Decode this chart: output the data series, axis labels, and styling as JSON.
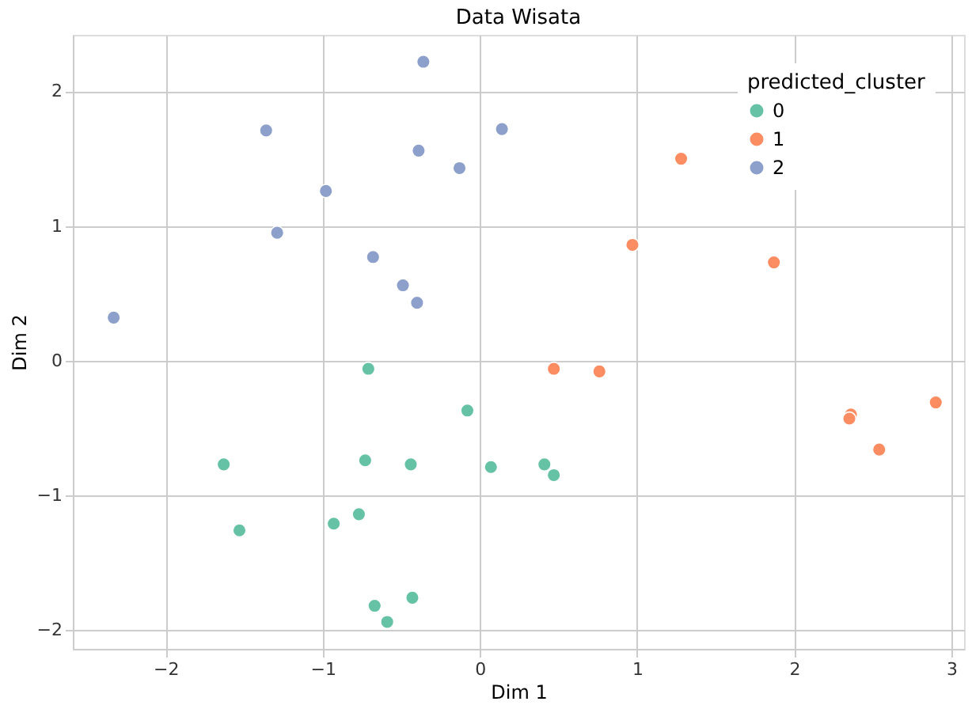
{
  "chart_data": {
    "type": "scatter",
    "title": "Data Wisata",
    "xlabel": "Dim 1",
    "ylabel": "Dim 2",
    "legend_title": "predicted_cluster",
    "xlim": [
      -2.59,
      3.08
    ],
    "ylim": [
      -2.14,
      2.42
    ],
    "xticks": [
      -2,
      -1,
      0,
      1,
      2,
      3
    ],
    "yticks": [
      -2,
      -1,
      0,
      1,
      2
    ],
    "grid": true,
    "legend": "top right",
    "marker": "circle",
    "series": [
      {
        "name": "0",
        "color": "#66c2a5",
        "x": [
          -0.71,
          -0.08,
          -1.63,
          -0.73,
          -0.44,
          0.07,
          0.41,
          0.47,
          -1.53,
          -0.93,
          -0.77,
          -0.67,
          -0.43,
          -0.59
        ],
        "values": [
          -0.06,
          -0.37,
          -0.77,
          -0.74,
          -0.77,
          -0.79,
          -0.77,
          -0.85,
          -1.26,
          -1.21,
          -1.14,
          -1.82,
          -1.76,
          -1.94
        ]
      },
      {
        "name": "1",
        "color": "#fc8d62",
        "x": [
          1.28,
          0.97,
          1.87,
          0.47,
          0.76,
          2.9,
          2.36,
          2.35,
          2.54
        ],
        "values": [
          1.5,
          0.86,
          0.73,
          -0.06,
          -0.08,
          -0.31,
          -0.4,
          -0.43,
          -0.66
        ]
      },
      {
        "name": "2",
        "color": "#8da0cb",
        "x": [
          -0.36,
          -1.36,
          0.14,
          -0.39,
          -0.13,
          -0.98,
          -1.29,
          -0.68,
          -0.49,
          -0.4,
          -2.33
        ],
        "values": [
          2.22,
          1.71,
          1.72,
          1.56,
          1.43,
          1.26,
          0.95,
          0.77,
          0.56,
          0.43,
          0.32
        ]
      }
    ]
  }
}
